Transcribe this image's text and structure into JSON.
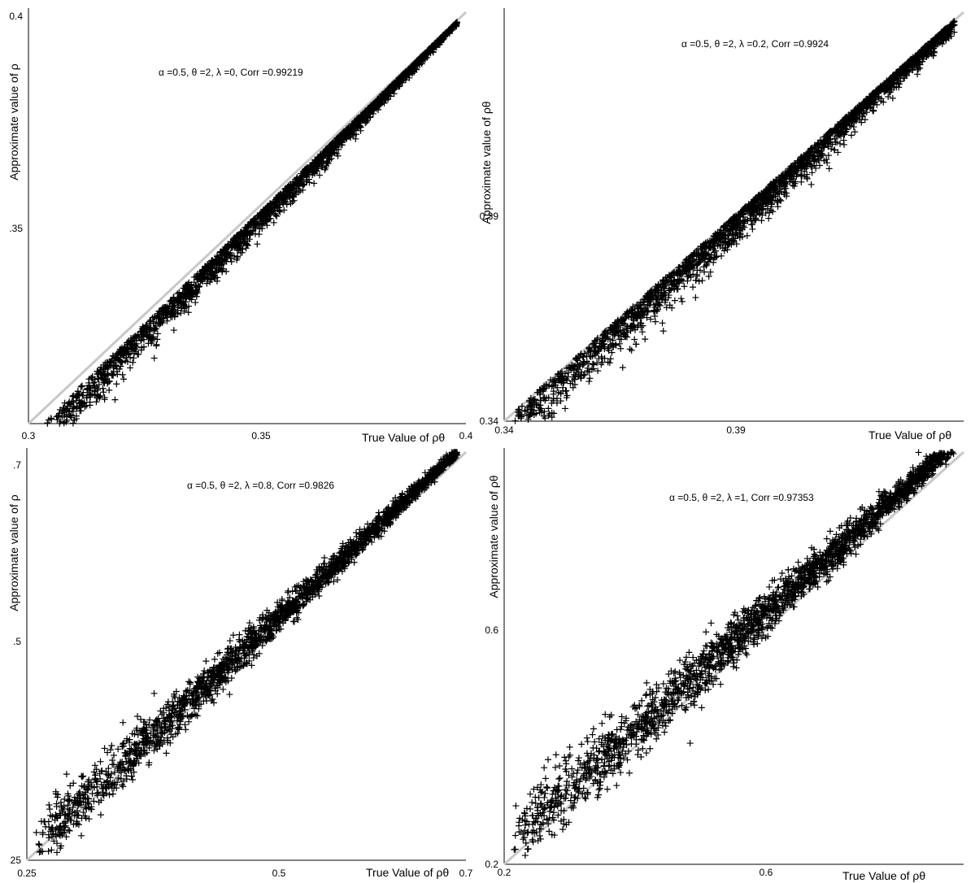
{
  "chart_data": [
    {
      "type": "scatter",
      "annotation": "α =0.5, θ =2, λ =0, Corr =0.99219",
      "xlabel": "True Value of ρθ",
      "ylabel": "Approximate value of ρ",
      "xlim": [
        0.3,
        0.4
      ],
      "ylim": [
        0.3,
        0.4
      ],
      "xticks": [
        "0.3",
        "0.35",
        "0.4"
      ],
      "yticks": [
        ".35",
        "0.4"
      ],
      "reference_line": "y = x",
      "marker": "+",
      "points": [
        [
          0.3,
          0.3
        ],
        [
          0.3,
          0.3
        ],
        [
          0.3,
          0.3
        ],
        [
          0.3,
          0.3
        ],
        [
          0.3,
          0.3
        ],
        [
          0.3,
          0.3
        ],
        [
          0.3,
          0.3
        ],
        [
          0.3,
          0.3
        ],
        [
          0.3,
          0.3
        ],
        [
          0.3,
          0.3
        ]
      ]
    },
    {
      "type": "scatter",
      "annotation": "α =0.5, θ =2, λ =0.2, Corr =0.9924",
      "xlabel": "True Value of ρθ",
      "ylabel": "Approximate value of ρθ",
      "xlim": [
        0.34,
        0.44
      ],
      "ylim": [
        0.34,
        0.44
      ],
      "xticks": [
        "0.34",
        "0.39"
      ],
      "yticks": [
        "0.34",
        "0.39"
      ],
      "reference_line": "y = x",
      "marker": "+",
      "points": [
        [
          0.34,
          0.34
        ],
        [
          0.34,
          0.34
        ],
        [
          0.34,
          0.34
        ],
        [
          0.34,
          0.34
        ],
        [
          0.34,
          0.34
        ],
        [
          0.34,
          0.34
        ],
        [
          0.34,
          0.34
        ],
        [
          0.34,
          0.34
        ],
        [
          0.34,
          0.34
        ],
        [
          0.34,
          0.34
        ]
      ]
    },
    {
      "type": "scatter",
      "annotation": "α =0.5, θ =2, λ =0.8, Corr =0.9826",
      "xlabel": "True Value of ρθ",
      "ylabel": "Approximate value of ρ",
      "xlim": [
        0.25,
        0.7
      ],
      "ylim": [
        0.25,
        0.7
      ],
      "xticks": [
        "0.25",
        "0.5",
        "0.7"
      ],
      "yticks": [
        "25",
        ".5",
        ".7"
      ],
      "reference_line": "y = x",
      "marker": "+",
      "points": [
        [
          0.25,
          0.25
        ],
        [
          0.25,
          0.25
        ],
        [
          0.25,
          0.25
        ],
        [
          0.25,
          0.25
        ],
        [
          0.25,
          0.25
        ],
        [
          0.25,
          0.25
        ],
        [
          0.25,
          0.25
        ],
        [
          0.25,
          0.25
        ],
        [
          0.25,
          0.25
        ],
        [
          0.25,
          0.25
        ]
      ]
    },
    {
      "type": "scatter",
      "annotation": "α =0.5, θ =2, λ =1, Corr =0.97353",
      "xlabel": "True Value of ρθ",
      "ylabel": "Approximate value of ρθ",
      "xlim": [
        0.2,
        0.75
      ],
      "ylim": [
        0.2,
        0.75
      ],
      "xticks": [
        "0.2",
        "0.6"
      ],
      "yticks": [
        "0.2",
        "0.6"
      ],
      "reference_line": "y = x",
      "marker": "+",
      "points": [
        [
          0.2,
          0.2
        ],
        [
          0.2,
          0.2
        ],
        [
          0.2,
          0.2
        ],
        [
          0.2,
          0.2
        ],
        [
          0.2,
          0.2
        ],
        [
          0.2,
          0.2
        ],
        [
          0.2,
          0.2
        ],
        [
          0.2,
          0.2
        ],
        [
          0.2,
          0.2
        ],
        [
          0.2,
          0.2
        ]
      ]
    }
  ]
}
